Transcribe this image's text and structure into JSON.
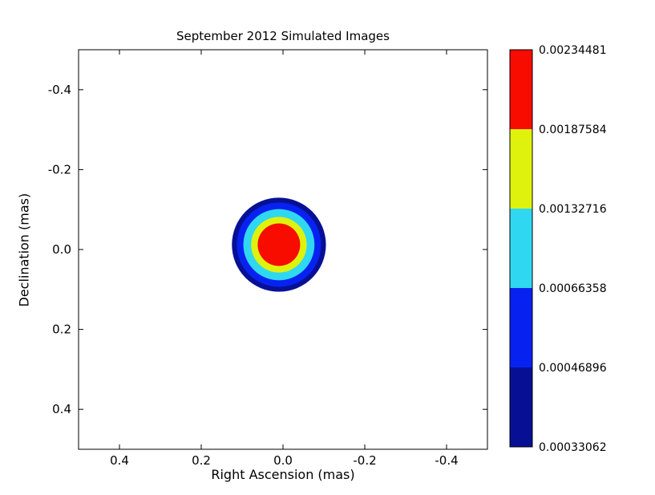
{
  "figure": {
    "background": "#ffffff"
  },
  "chart_data": {
    "type": "contour",
    "title": "September 2012 Simulated Images",
    "xlabel": "Right Ascension (mas)",
    "ylabel": "Declination (mas)",
    "grid": false,
    "x_axis": {
      "min": 0.5,
      "max": -0.5,
      "ticks": [
        0.4,
        0.2,
        0.0,
        -0.2,
        -0.4
      ],
      "tick_labels": [
        "0.4",
        "0.2",
        "0.0",
        "-0.2",
        "-0.4"
      ]
    },
    "y_axis": {
      "min": -0.5,
      "max": 0.5,
      "ticks": [
        -0.4,
        -0.2,
        0.0,
        0.2,
        0.4
      ],
      "tick_labels": [
        "-0.4",
        "-0.2",
        "0.0",
        "0.2",
        "0.4"
      ]
    },
    "source_blob": {
      "center_ra_mas": 0.01,
      "center_dec_mas": -0.012,
      "rings_outer_to_inner": [
        {
          "level_min": 0.00033062,
          "radius_mas": 0.115,
          "color": "#071095"
        },
        {
          "level_min": 0.00046896,
          "radius_mas": 0.103,
          "color": "#0722f0"
        },
        {
          "level_min": 0.00066358,
          "radius_mas": 0.087,
          "color": "#2fd8f0"
        },
        {
          "level_min": 0.00132716,
          "radius_mas": 0.068,
          "color": "#dff20d"
        },
        {
          "level_min": 0.00187584,
          "radius_mas": 0.052,
          "color": "#f80c00"
        }
      ]
    },
    "colorbar": {
      "position": "right",
      "segment_colors_top_to_bottom": [
        "#f80c00",
        "#dff20d",
        "#2fd8f0",
        "#0722f0",
        "#071095"
      ],
      "boundary_labels_top_to_bottom": [
        "0.00234481",
        "0.00187584",
        "0.00132716",
        "0.00066358",
        "0.00046896",
        "0.00033062"
      ]
    }
  }
}
